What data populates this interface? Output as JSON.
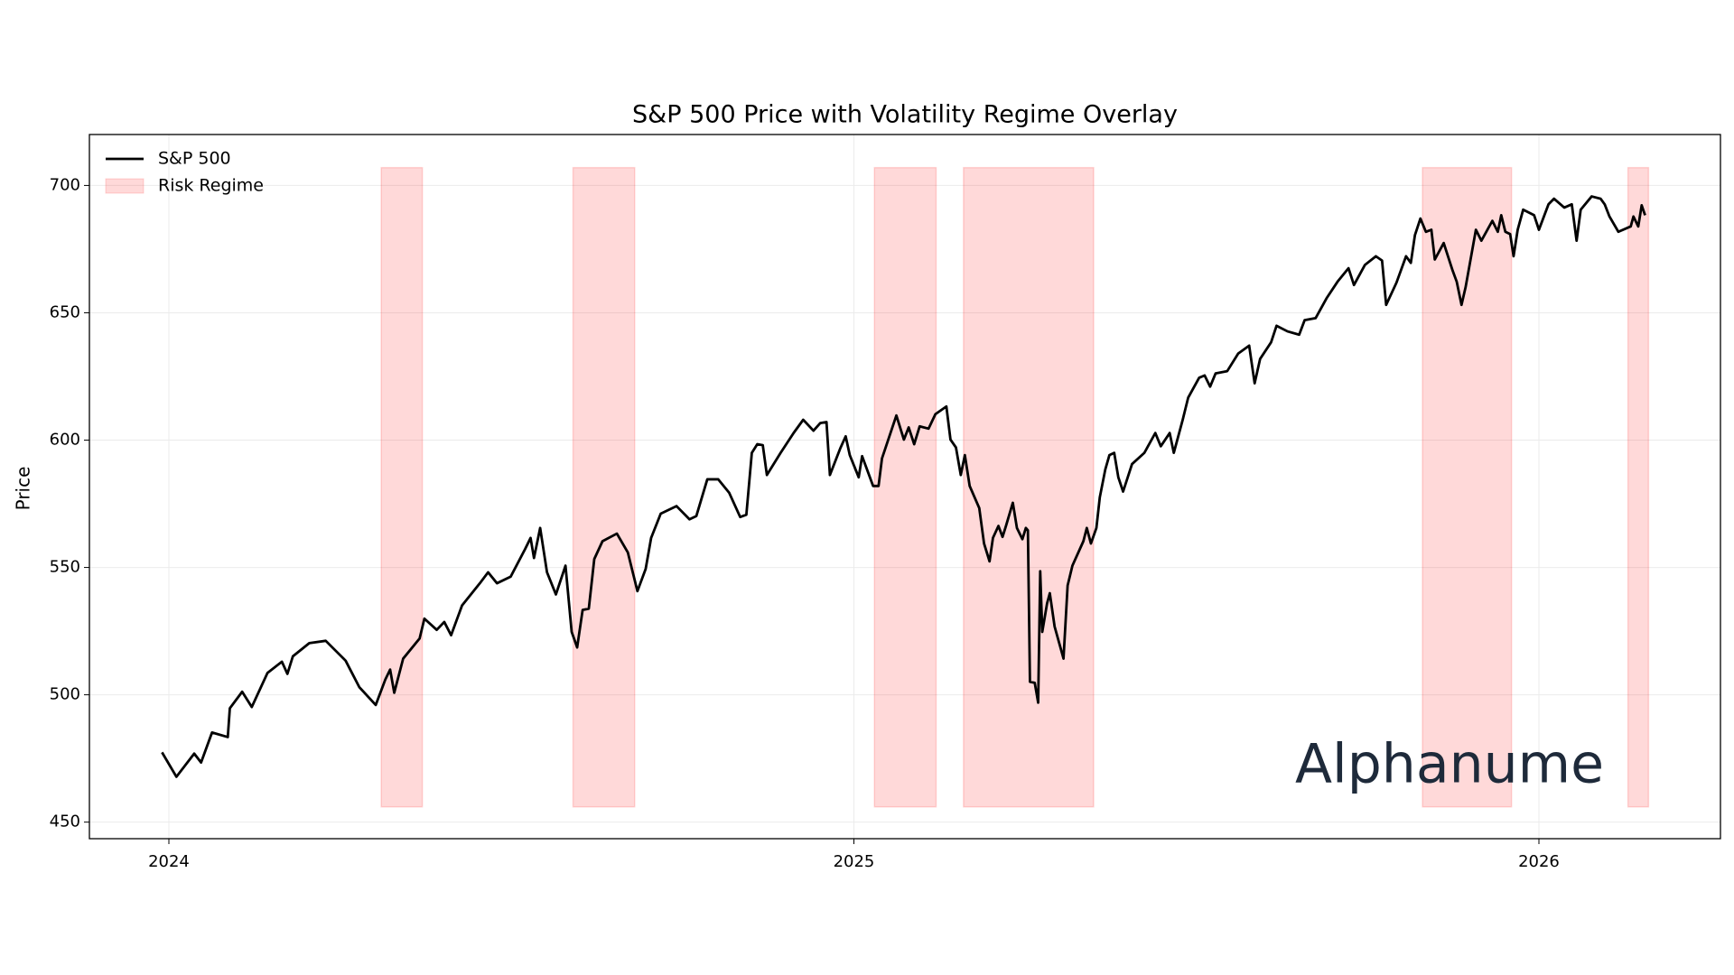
{
  "chart_data": {
    "type": "line",
    "title": "S&P 500 Price with Volatility Regime Overlay",
    "y_label": "Price",
    "watermark": "Alphanume",
    "xlim": [
      2023.884,
      2026.265
    ],
    "xticks": [
      2024,
      2025,
      2026
    ],
    "ylim": [
      443.5,
      720
    ],
    "yticks": [
      450,
      500,
      550,
      600,
      650,
      700
    ],
    "grid": true,
    "legend": "upper left",
    "series": [
      {
        "name": "S&P 500",
        "color": "#000000",
        "x": [
          2023.99,
          2024.011,
          2024.037,
          2024.047,
          2024.063,
          2024.086,
          2024.089,
          2024.107,
          2024.121,
          2024.144,
          2024.165,
          2024.173,
          2024.181,
          2024.205,
          2024.229,
          2024.245,
          2024.258,
          2024.278,
          2024.302,
          2024.316,
          2024.323,
          2024.329,
          2024.342,
          2024.366,
          2024.373,
          2024.391,
          2024.402,
          2024.412,
          2024.428,
          2024.454,
          2024.466,
          2024.479,
          2024.499,
          2024.52,
          2024.528,
          2024.533,
          2024.542,
          2024.552,
          2024.565,
          2024.579,
          2024.588,
          2024.596,
          2024.604,
          2024.613,
          2024.621,
          2024.633,
          2024.654,
          2024.67,
          2024.684,
          2024.696,
          2024.704,
          2024.718,
          2024.741,
          2024.76,
          2024.77,
          2024.786,
          2024.802,
          2024.818,
          2024.834,
          2024.843,
          2024.851,
          2024.859,
          2024.867,
          2024.873,
          2024.893,
          2024.912,
          2024.926,
          2024.941,
          2024.951,
          2024.96,
          2024.965,
          2024.98,
          2024.988,
          2024.994,
          2025.007,
          2025.012,
          2025.028,
          2025.036,
          2025.041,
          2025.062,
          2025.073,
          2025.08,
          2025.088,
          2025.096,
          2025.109,
          2025.119,
          2025.135,
          2025.141,
          2025.149,
          2025.156,
          2025.162,
          2025.169,
          2025.183,
          2025.19,
          2025.198,
          2025.203,
          2025.211,
          2025.217,
          2025.222,
          2025.232,
          2025.238,
          2025.246,
          2025.251,
          2025.254,
          2025.257,
          2025.264,
          2025.269,
          2025.272,
          2025.275,
          2025.282,
          2025.286,
          2025.293,
          2025.306,
          2025.312,
          2025.319,
          2025.335,
          2025.34,
          2025.346,
          2025.354,
          2025.359,
          2025.367,
          2025.373,
          2025.38,
          2025.386,
          2025.393,
          2025.406,
          2025.424,
          2025.44,
          2025.448,
          2025.461,
          2025.467,
          2025.48,
          2025.488,
          2025.504,
          2025.512,
          2025.52,
          2025.528,
          2025.545,
          2025.561,
          2025.577,
          2025.585,
          2025.593,
          2025.609,
          2025.617,
          2025.633,
          2025.65,
          2025.658,
          2025.674,
          2025.69,
          2025.706,
          2025.722,
          2025.73,
          2025.746,
          2025.762,
          2025.771,
          2025.777,
          2025.792,
          2025.806,
          2025.813,
          2025.819,
          2025.827,
          2025.835,
          2025.843,
          2025.848,
          2025.861,
          2025.874,
          2025.88,
          2025.887,
          2025.893,
          2025.908,
          2025.916,
          2025.932,
          2025.94,
          2025.945,
          2025.951,
          2025.958,
          2025.963,
          2025.969,
          2025.977,
          2025.993,
          2026.0,
          2026.014,
          2026.022,
          2026.037,
          2026.048,
          2026.055,
          2026.061,
          2026.077,
          2026.09,
          2026.096,
          2026.103,
          2026.116,
          2026.134,
          2026.138,
          2026.145,
          2026.15,
          2026.155
        ],
        "values": [
          477.4,
          467.8,
          476.9,
          473.4,
          485.2,
          483.4,
          494.7,
          501.2,
          495.2,
          508.6,
          513.0,
          508.2,
          515.1,
          520.3,
          521.2,
          516.9,
          513.4,
          503.0,
          496.0,
          506.0,
          509.9,
          500.8,
          514.2,
          522.1,
          529.9,
          525.5,
          528.6,
          523.4,
          535.1,
          543.8,
          548.1,
          543.8,
          546.4,
          557.2,
          561.6,
          553.7,
          565.5,
          548.1,
          539.4,
          550.7,
          524.7,
          518.6,
          533.3,
          533.8,
          553.3,
          560.3,
          563.3,
          555.9,
          540.7,
          549.4,
          561.6,
          571.1,
          574.1,
          568.9,
          570.2,
          584.6,
          584.6,
          579.3,
          569.8,
          570.7,
          595.0,
          598.4,
          598.0,
          586.3,
          595.0,
          602.8,
          608.0,
          603.7,
          606.7,
          607.1,
          586.3,
          596.7,
          601.5,
          594.1,
          585.4,
          593.7,
          582.0,
          582.0,
          592.8,
          609.7,
          600.2,
          605.0,
          598.4,
          605.4,
          604.5,
          610.2,
          613.2,
          600.2,
          597.1,
          586.3,
          594.1,
          582.0,
          573.3,
          559.4,
          552.4,
          561.6,
          566.3,
          562.0,
          566.3,
          575.4,
          565.5,
          561.1,
          565.5,
          564.6,
          505.1,
          504.7,
          496.9,
          548.5,
          524.7,
          535.9,
          539.9,
          526.8,
          514.2,
          542.9,
          550.7,
          560.3,
          565.5,
          559.4,
          565.5,
          577.6,
          588.5,
          594.1,
          595.0,
          585.4,
          579.8,
          590.6,
          595.0,
          602.8,
          597.6,
          602.8,
          595.0,
          608.0,
          616.7,
          624.5,
          625.4,
          621.0,
          626.2,
          627.1,
          634.0,
          637.1,
          622.3,
          631.9,
          638.4,
          644.9,
          642.7,
          641.4,
          647.1,
          647.9,
          655.7,
          662.2,
          667.5,
          660.9,
          668.8,
          672.2,
          670.5,
          653.1,
          661.8,
          672.2,
          669.6,
          680.5,
          687.0,
          681.8,
          682.6,
          670.9,
          677.4,
          666.6,
          662.2,
          653.1,
          660.1,
          682.6,
          678.3,
          686.1,
          681.8,
          688.3,
          681.8,
          680.9,
          672.2,
          682.6,
          690.5,
          688.3,
          682.6,
          692.6,
          694.8,
          691.3,
          692.6,
          678.3,
          690.5,
          695.7,
          694.8,
          692.6,
          687.8,
          681.8,
          683.9,
          687.8,
          683.9,
          692.2,
          688.3
        ]
      }
    ],
    "regimes": {
      "name": "Risk Regime",
      "color": "#ff0000",
      "low": 456,
      "high": 707,
      "spans": [
        {
          "start": 2024.31,
          "end": 2024.37
        },
        {
          "start": 2024.59,
          "end": 2024.68
        },
        {
          "start": 2025.03,
          "end": 2025.12
        },
        {
          "start": 2025.16,
          "end": 2025.35
        },
        {
          "start": 2025.83,
          "end": 2025.96
        },
        {
          "start": 2026.13,
          "end": 2026.16
        }
      ]
    }
  }
}
